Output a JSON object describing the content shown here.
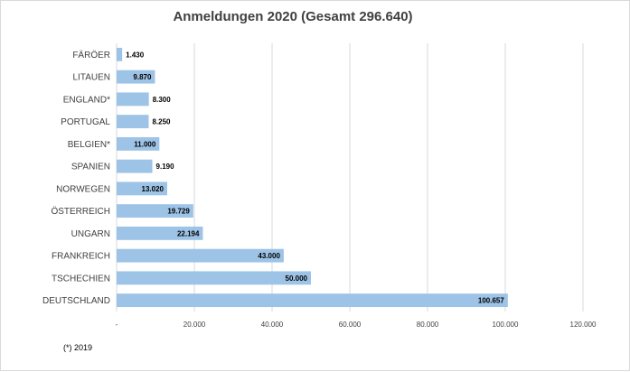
{
  "chart_data": {
    "type": "bar",
    "orientation": "horizontal",
    "title": "Anmeldungen 2020 (Gesamt 296.640)",
    "categories": [
      "FÄRÖER",
      "LITAUEN",
      "ENGLAND*",
      "PORTUGAL",
      "BELGIEN*",
      "SPANIEN",
      "NORWEGEN",
      "ÖSTERREICH",
      "UNGARN",
      "FRANKREICH",
      "TSCHECHIEN",
      "DEUTSCHLAND"
    ],
    "values": [
      1430,
      9870,
      8300,
      8250,
      11000,
      9190,
      13020,
      19729,
      22194,
      43000,
      50000,
      100657
    ],
    "value_labels": [
      "1.430",
      "9.870",
      "8.300",
      "8.250",
      "11.000",
      "9.190",
      "13.020",
      "19.729",
      "22.194",
      "43.000",
      "50.000",
      "100.657"
    ],
    "xlim": [
      0,
      120000
    ],
    "x_ticks": [
      0,
      20000,
      40000,
      60000,
      80000,
      100000,
      120000
    ],
    "x_tick_labels": [
      "-",
      "20.000",
      "40.000",
      "60.000",
      "80.000",
      "100.000",
      "120.000"
    ],
    "xlabel": "",
    "ylabel": "",
    "grid": "vertical",
    "legend": "none",
    "bar_color": "#9dc3e6",
    "grid_color": "#d9d9d9"
  },
  "footnote": "(*) 2019"
}
